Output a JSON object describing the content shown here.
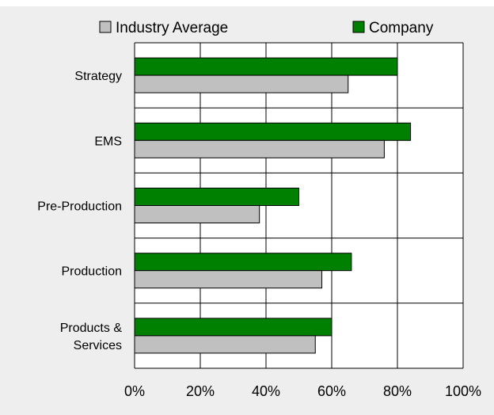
{
  "chart_data": {
    "type": "bar",
    "orientation": "horizontal",
    "categories": [
      "Strategy",
      "EMS",
      "Pre-Production",
      "Production",
      "Products & Services"
    ],
    "series": [
      {
        "name": "Company",
        "color": "#008000",
        "values": [
          80,
          84,
          50,
          66,
          60
        ]
      },
      {
        "name": "Industry Average",
        "color": "#c0c0c0",
        "values": [
          65,
          76,
          38,
          57,
          55
        ]
      }
    ],
    "xlim": [
      0,
      100
    ],
    "xticks": [
      0,
      20,
      40,
      60,
      80,
      100
    ],
    "tick_suffix": "%",
    "xlabel": "",
    "ylabel": "",
    "legend": {
      "position": "top",
      "order": [
        "Industry Average",
        "Company"
      ]
    },
    "grid": true,
    "colors": {
      "background": "#eeeeee",
      "plot_background": "#ffffff",
      "gridline": "#000000"
    }
  }
}
